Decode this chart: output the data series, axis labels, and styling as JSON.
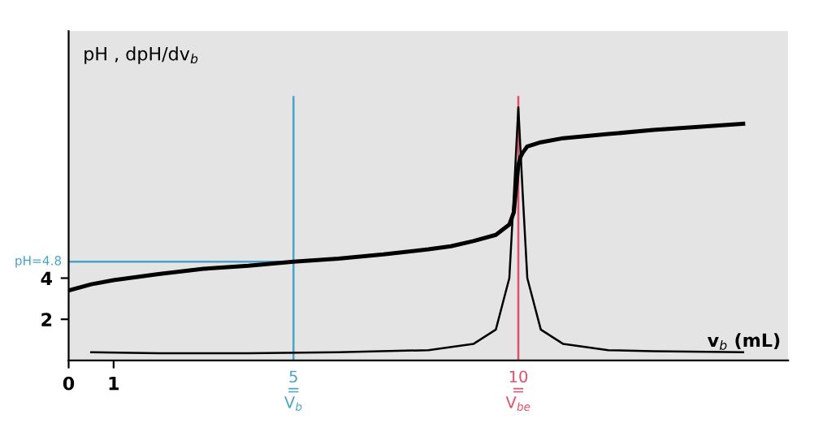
{
  "chart_data": {
    "type": "line",
    "xlabel": "v$_{b}$ (mL)",
    "ylabel": "pH , dpH/dv$_{b}$",
    "xlim": [
      0,
      16
    ],
    "ylim": [
      0,
      16
    ],
    "xticks": [
      0,
      1
    ],
    "yticks": [
      2,
      4
    ],
    "grid": false,
    "marker": "none",
    "line_style": "solid",
    "series": [
      {
        "color": "#000000",
        "x": [
          0,
          0.5,
          1,
          2,
          3,
          4,
          5,
          6,
          7,
          8,
          8.5,
          9,
          9.5,
          9.8,
          9.9,
          10,
          10.05,
          10.1,
          10.2,
          10.5,
          11,
          12,
          13,
          14,
          15
        ],
        "values": [
          3.4,
          3.7,
          3.9,
          4.2,
          4.45,
          4.6,
          4.8,
          4.95,
          5.15,
          5.4,
          5.55,
          5.8,
          6.1,
          6.6,
          7.2,
          9.5,
          9.9,
          10.1,
          10.4,
          10.6,
          10.8,
          11.0,
          11.2,
          11.35,
          11.5
        ]
      },
      {
        "color": "#000000",
        "x": [
          0.5,
          2,
          4,
          6,
          8,
          9,
          9.5,
          9.8,
          9.9,
          10,
          10.1,
          10.2,
          10.5,
          11,
          12,
          13,
          15
        ],
        "values": [
          0.4,
          0.35,
          0.35,
          0.4,
          0.5,
          0.8,
          1.5,
          4,
          8,
          12.3,
          8,
          4,
          1.5,
          0.8,
          0.5,
          0.45,
          0.4
        ]
      }
    ],
    "ref_lines": [
      {
        "axis": "y",
        "value": 4.8,
        "label": "pH=4.8",
        "color": "#4aa3c8"
      },
      {
        "axis": "x",
        "value": 5,
        "label": "5\n=\nV$_{b}$",
        "color": "#4aa3c8"
      },
      {
        "axis": "x",
        "value": 10,
        "label": "10\n=\nV$_{be}$",
        "color": "#e0506a"
      }
    ]
  }
}
